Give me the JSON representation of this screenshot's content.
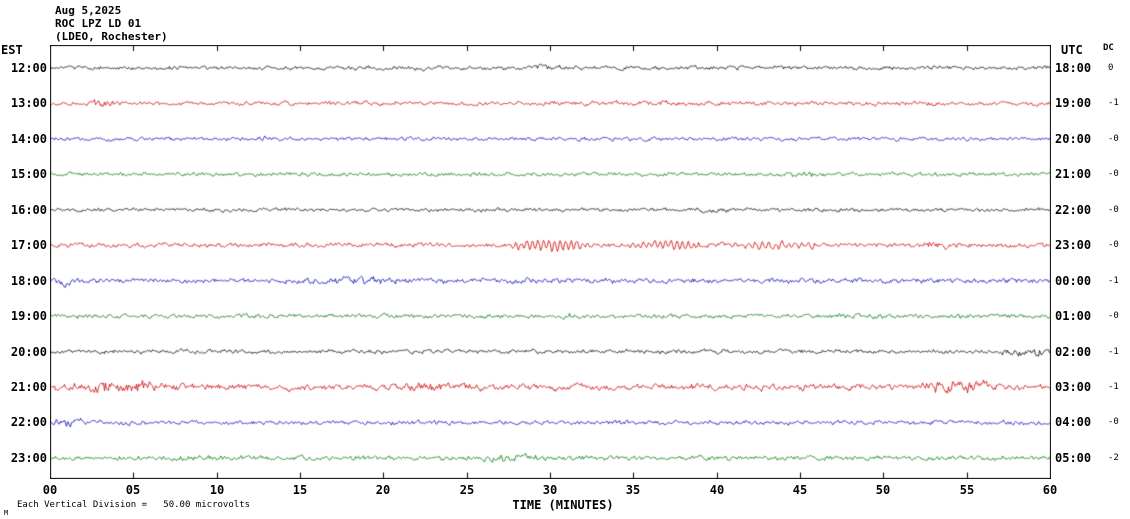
{
  "header": {
    "date": "Aug 5,2025",
    "station": "ROC LPZ LD 01",
    "network": "(LDEO, Rochester)"
  },
  "footer": {
    "scale_note": "Each Vertical Division =   50.00 microvolts",
    "corner_mark": "M"
  },
  "colors": {
    "black": "#000000",
    "red": "#cc0000",
    "blue": "#0000bb",
    "green": "#007700"
  },
  "chart_data": {
    "type": "line",
    "title": "ROC LPZ LD 01 helicorder record",
    "subtitle": "(LDEO, Rochester) Aug 5,2025",
    "x_title": "TIME (MINUTES)",
    "x_unit": "minutes",
    "x_range": [
      0,
      60
    ],
    "x_ticks": [
      "00",
      "05",
      "10",
      "15",
      "20",
      "25",
      "30",
      "35",
      "40",
      "45",
      "50",
      "55",
      "60"
    ],
    "left_axis": "EST",
    "right_axis": "UTC",
    "dc_column": "DC",
    "vertical_division_microvolts": 50.0,
    "rows": [
      {
        "est": "12:00",
        "utc": "18:00",
        "dc": "0",
        "color": "black",
        "base_amp": 1.3,
        "events": [
          {
            "t0": 29,
            "t1": 31,
            "amp": 1.0
          }
        ]
      },
      {
        "est": "13:00",
        "utc": "19:00",
        "dc": "-1",
        "color": "red",
        "base_amp": 1.4,
        "events": [
          {
            "t0": 2,
            "t1": 4,
            "amp": 1.0
          },
          {
            "t0": 36,
            "t1": 38,
            "amp": 0.8
          }
        ]
      },
      {
        "est": "14:00",
        "utc": "20:00",
        "dc": "-0",
        "color": "blue",
        "base_amp": 1.2,
        "events": [
          {
            "t0": 12,
            "t1": 14,
            "amp": 0.8
          }
        ]
      },
      {
        "est": "15:00",
        "utc": "21:00",
        "dc": "-0",
        "color": "green",
        "base_amp": 1.3,
        "events": [
          {
            "t0": 44,
            "t1": 46,
            "amp": 0.8
          }
        ]
      },
      {
        "est": "16:00",
        "utc": "22:00",
        "dc": "-0",
        "color": "black",
        "base_amp": 1.2,
        "events": [
          {
            "t0": 38,
            "t1": 40,
            "amp": 0.9
          }
        ]
      },
      {
        "est": "17:00",
        "utc": "23:00",
        "dc": "-0",
        "color": "red",
        "base_amp": 1.5,
        "events": [
          {
            "t0": 27,
            "t1": 33,
            "amp": 5.0,
            "freq": 3
          },
          {
            "t0": 34,
            "t1": 40,
            "amp": 3.5,
            "freq": 3
          },
          {
            "t0": 40,
            "t1": 47,
            "amp": 3.0,
            "freq": 2.5
          },
          {
            "t0": 52,
            "t1": 54,
            "amp": 1.5
          }
        ]
      },
      {
        "est": "18:00",
        "utc": "00:00",
        "dc": "-1",
        "color": "blue",
        "base_amp": 1.6,
        "events": [
          {
            "t0": 0,
            "t1": 2,
            "amp": 2.2
          },
          {
            "t0": 15,
            "t1": 22,
            "amp": 1.2
          }
        ]
      },
      {
        "est": "19:00",
        "utc": "01:00",
        "dc": "-0",
        "color": "green",
        "base_amp": 1.4,
        "events": [
          {
            "t0": 30,
            "t1": 32,
            "amp": 0.8
          }
        ]
      },
      {
        "est": "20:00",
        "utc": "02:00",
        "dc": "-1",
        "color": "black",
        "base_amp": 1.4,
        "events": [
          {
            "t0": 57,
            "t1": 60,
            "amp": 2.2
          }
        ]
      },
      {
        "est": "21:00",
        "utc": "03:00",
        "dc": "-1",
        "color": "red",
        "base_amp": 2.1,
        "events": [
          {
            "t0": 0,
            "t1": 8,
            "amp": 1.8
          },
          {
            "t0": 21,
            "t1": 24,
            "amp": 1.2
          },
          {
            "t0": 52,
            "t1": 57,
            "amp": 2.4
          }
        ]
      },
      {
        "est": "22:00",
        "utc": "04:00",
        "dc": "-0",
        "color": "blue",
        "base_amp": 1.4,
        "events": [
          {
            "t0": 0,
            "t1": 2,
            "amp": 2.6
          }
        ]
      },
      {
        "est": "23:00",
        "utc": "05:00",
        "dc": "-2",
        "color": "green",
        "base_amp": 1.5,
        "events": [
          {
            "t0": 25,
            "t1": 30,
            "amp": 1.0
          }
        ]
      }
    ]
  }
}
